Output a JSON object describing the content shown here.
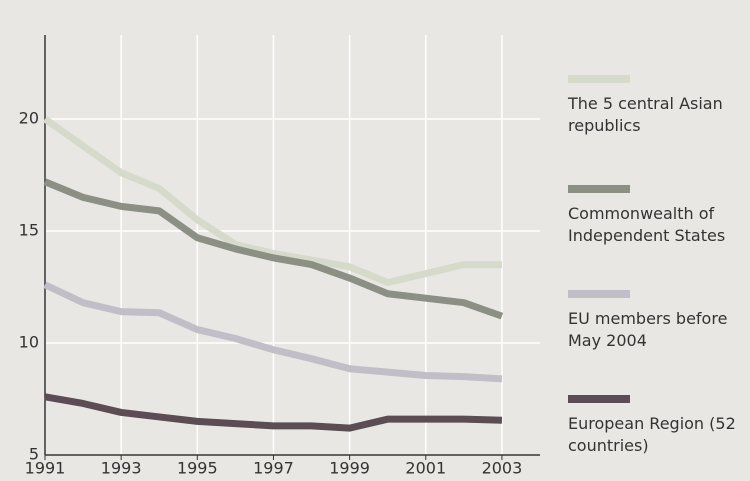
{
  "chart_data": {
    "type": "line",
    "x": [
      1991,
      1992,
      1993,
      1994,
      1995,
      1996,
      1997,
      1998,
      1999,
      2000,
      2001,
      2002,
      2003
    ],
    "series": [
      {
        "name": "The 5 central Asian republics",
        "color": "#d6dacb",
        "values": [
          20.0,
          18.8,
          17.6,
          16.9,
          15.5,
          14.4,
          14.0,
          13.7,
          13.4,
          12.7,
          13.1,
          13.5,
          13.5
        ]
      },
      {
        "name": "Commonwealth of Independent States",
        "color": "#8c9084",
        "values": [
          17.2,
          16.5,
          16.1,
          15.9,
          14.7,
          14.2,
          13.8,
          13.5,
          12.9,
          12.2,
          12.0,
          11.8,
          11.2
        ]
      },
      {
        "name": "EU members before May 2004",
        "color": "#c2bec7",
        "values": [
          12.6,
          11.8,
          11.4,
          11.35,
          10.6,
          10.2,
          9.7,
          9.3,
          8.85,
          8.7,
          8.55,
          8.5,
          8.4
        ]
      },
      {
        "name": "European Region (52 countries)",
        "color": "#5c4c54",
        "values": [
          7.6,
          7.3,
          6.9,
          6.7,
          6.5,
          6.4,
          6.3,
          6.3,
          6.2,
          6.6,
          6.6,
          6.6,
          6.55
        ]
      }
    ],
    "xlim": [
      1991,
      2004
    ],
    "xticks": [
      1991,
      1993,
      1995,
      1997,
      1999,
      2001,
      2003
    ],
    "ylim": [
      5,
      23.75
    ],
    "yticks": [
      5,
      10,
      15,
      20
    ],
    "grid": true
  }
}
